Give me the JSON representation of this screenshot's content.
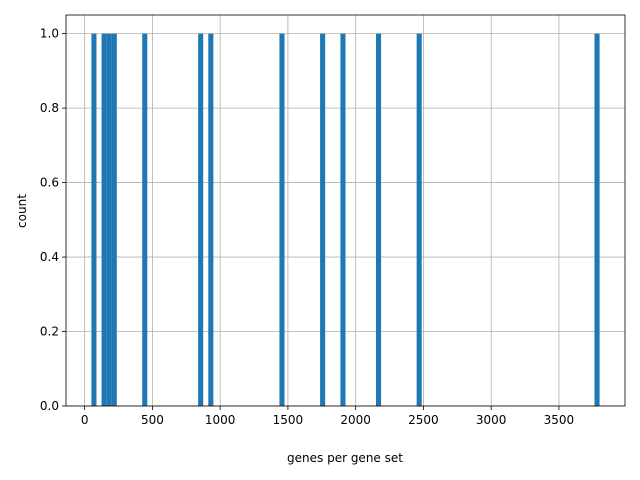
{
  "chart_data": {
    "type": "histogram",
    "x_label": "genes per gene set",
    "y_label": "count",
    "bins": [
      50,
      87.5,
      125,
      162.5,
      200,
      237.5,
      425,
      462.5,
      837.5,
      875,
      912.5,
      950,
      1437.5,
      1475,
      1737.5,
      1775,
      1887.5,
      1925,
      2150,
      2187.5,
      2450,
      2487.5,
      3762.5,
      3800
    ],
    "counts": [
      1,
      0,
      1,
      1,
      1,
      0,
      1,
      0,
      1,
      0,
      1,
      0,
      1,
      0,
      1,
      0,
      1,
      0,
      1,
      0,
      1,
      0,
      1
    ],
    "color": "#1f77b4",
    "xlim": [
      -137.5,
      3987.5
    ],
    "xticks": [
      0,
      500,
      1000,
      1500,
      2000,
      2500,
      3000,
      3500
    ],
    "ylim": [
      0,
      1.05
    ],
    "yticks": [
      {
        "value": 0,
        "label": "0.0"
      },
      {
        "value": 0.2,
        "label": "0.2"
      },
      {
        "value": 0.4,
        "label": "0.4"
      },
      {
        "value": 0.6,
        "label": "0.6"
      },
      {
        "value": 0.8,
        "label": "0.8"
      },
      {
        "value": 1,
        "label": "1.0"
      }
    ],
    "grid": true
  }
}
